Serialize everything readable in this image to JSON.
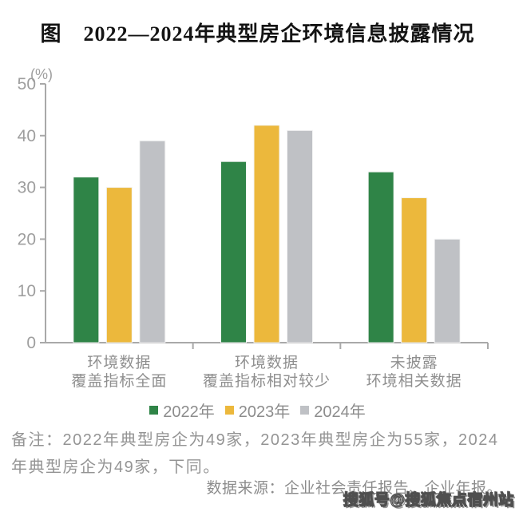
{
  "colors": {
    "axis": "#A9A9A9",
    "tick_text": "#9E9E9E",
    "label_text": "#8F8F8F",
    "title_text": "#141414",
    "note_text": "#949494",
    "bar_2022": "#2F8447",
    "bar_2023": "#ECB83C",
    "bar_2024": "#BFC1C5"
  },
  "chart_data": {
    "type": "bar",
    "title": "图　2022—2024年典型房企环境信息披露情况",
    "ylabel": "(%)",
    "xlabel": "",
    "ylim": [
      0,
      50
    ],
    "yticks": [
      0,
      10,
      20,
      30,
      40,
      50
    ],
    "grid": false,
    "legend_position": "bottom",
    "categories": [
      "环境数据\n覆盖指标全面",
      "环境数据\n覆盖指标相对较少",
      "未披露\n环境相关数据"
    ],
    "series": [
      {
        "name": "2022年",
        "color": "#2F8447",
        "values": [
          32,
          35,
          33
        ]
      },
      {
        "name": "2023年",
        "color": "#ECB83C",
        "values": [
          30,
          42,
          28
        ]
      },
      {
        "name": "2024年",
        "color": "#BFC1C5",
        "values": [
          39,
          41,
          20
        ]
      }
    ]
  },
  "note_lines": [
    "备注：2022年典型房企为49家，2023年典型房企为55家，2024",
    "年典型房企为49家，下同。"
  ],
  "source": "数据来源：企业社会责任报告、企业年报。",
  "watermark": "搜狐号@搜狐焦点宿州站"
}
